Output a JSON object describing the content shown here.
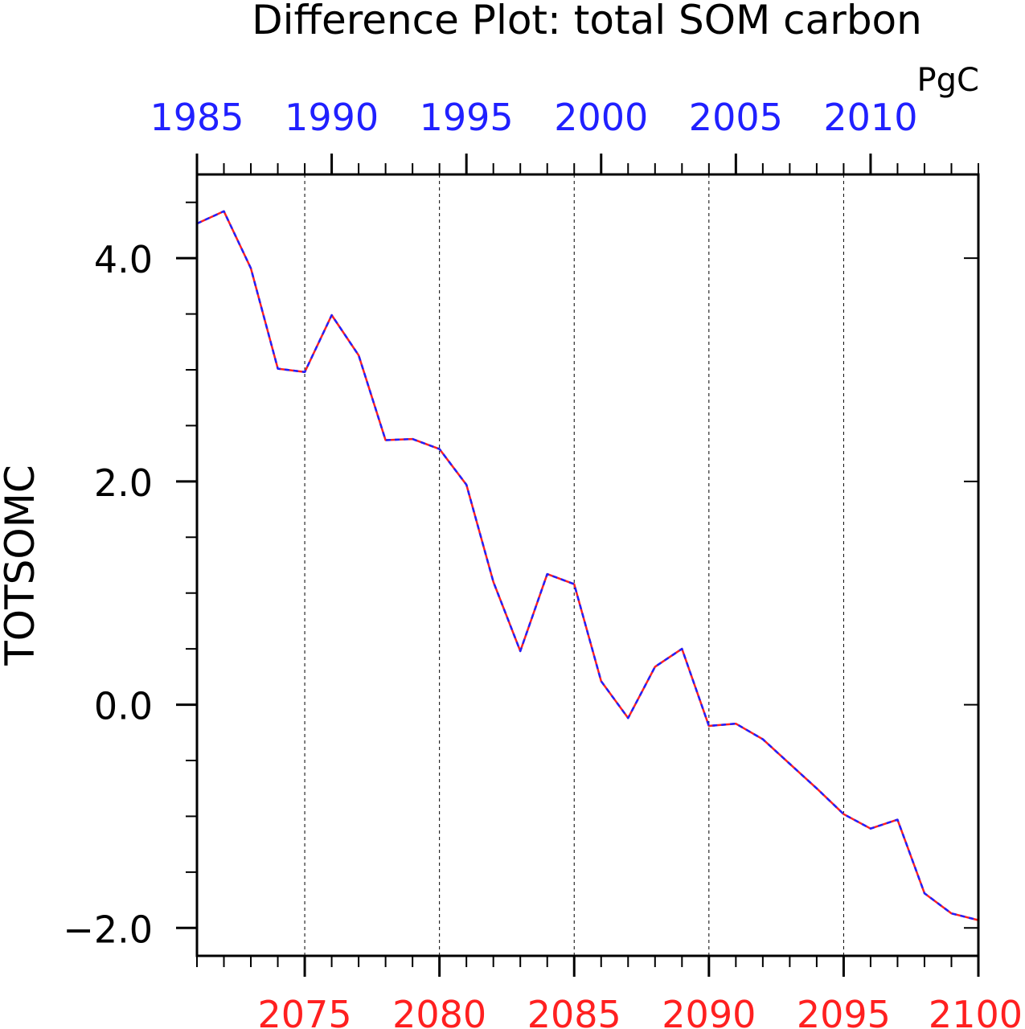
{
  "chart_data": {
    "type": "line",
    "title": "Difference Plot: total SOM carbon",
    "units": "PgC",
    "ylabel": "TOTSOMC",
    "xlabel": "",
    "ylim": [
      -2.25,
      4.75
    ],
    "yticks_major": [
      -2.0,
      0.0,
      2.0,
      4.0
    ],
    "ytick_labels": [
      "−2.0",
      "0.0",
      "2.0",
      "4.0"
    ],
    "yticks_minor": [
      -1.5,
      -1.0,
      -0.5,
      0.5,
      1.0,
      1.5,
      2.5,
      3.0,
      3.5,
      4.5
    ],
    "bottom_axis": {
      "color": "#ff2020",
      "range": [
        2071,
        2100
      ],
      "ticks": [
        2075,
        2080,
        2085,
        2090,
        2095,
        2100
      ],
      "tick_labels": [
        "2075",
        "2080",
        "2085",
        "2090",
        "2095",
        "2100"
      ]
    },
    "top_axis": {
      "color": "#2020ff",
      "range": [
        1985,
        2014
      ],
      "ticks": [
        1985,
        1990,
        1995,
        2000,
        2005,
        2010
      ],
      "tick_labels": [
        "1985",
        "1990",
        "1995",
        "2000",
        "2005",
        "2010"
      ]
    },
    "grid": "vertical dashed at major bottom ticks",
    "x": [
      2071,
      2072,
      2073,
      2074,
      2075,
      2076,
      2077,
      2078,
      2079,
      2080,
      2081,
      2082,
      2083,
      2084,
      2085,
      2086,
      2087,
      2088,
      2089,
      2090,
      2091,
      2092,
      2093,
      2094,
      2095,
      2096,
      2097,
      2098,
      2099,
      2100
    ],
    "series": [
      {
        "color": "#ff2020",
        "style": "solid",
        "values": [
          4.31,
          4.42,
          3.91,
          3.01,
          2.98,
          3.49,
          3.13,
          2.37,
          2.38,
          2.29,
          1.97,
          1.1,
          0.48,
          1.17,
          1.08,
          0.21,
          -0.12,
          0.34,
          0.5,
          -0.19,
          -0.17,
          -0.31,
          -0.53,
          -0.75,
          -0.98,
          -1.11,
          -1.03,
          -1.69,
          -1.87,
          -1.93
        ]
      },
      {
        "color": "#2020ff",
        "style": "dashed",
        "values": [
          4.31,
          4.42,
          3.91,
          3.01,
          2.98,
          3.49,
          3.13,
          2.37,
          2.38,
          2.29,
          1.97,
          1.1,
          0.48,
          1.17,
          1.08,
          0.21,
          -0.12,
          0.34,
          0.5,
          -0.19,
          -0.17,
          -0.31,
          -0.53,
          -0.75,
          -0.98,
          -1.11,
          -1.03,
          -1.69,
          -1.87,
          -1.93
        ]
      }
    ]
  }
}
